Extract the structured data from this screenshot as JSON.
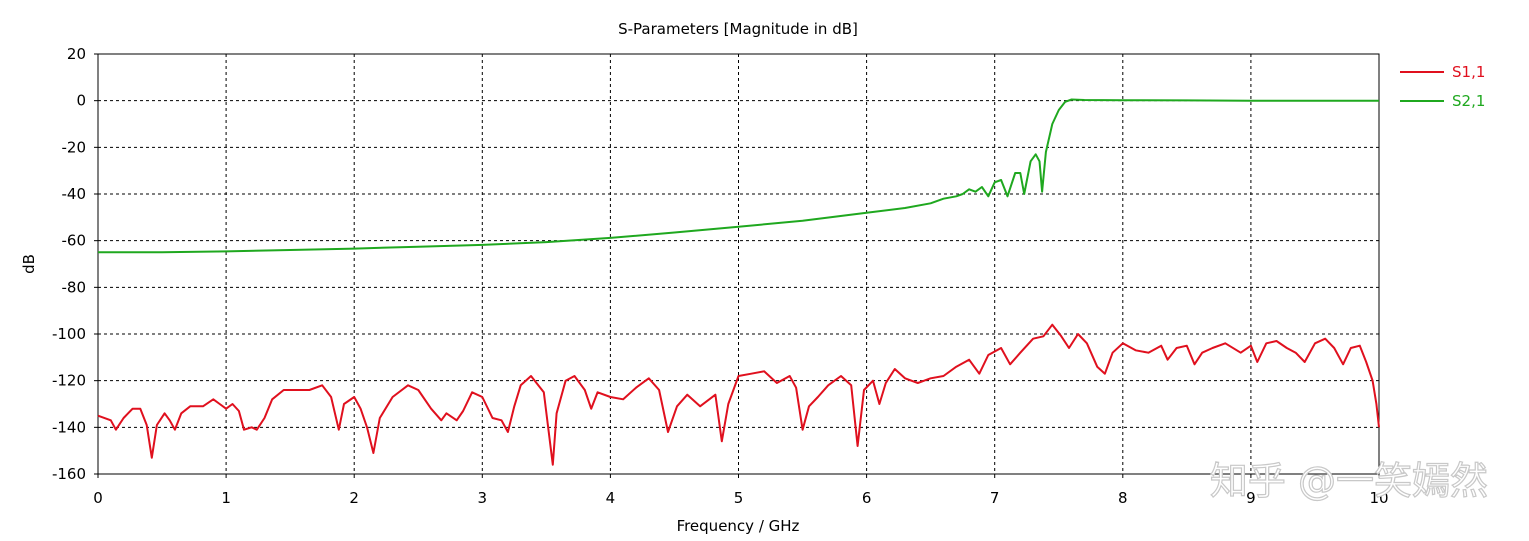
{
  "chart_data": {
    "type": "line",
    "title": "S-Parameters [Magnitude in dB]",
    "xlabel": "Frequency / GHz",
    "ylabel": "dB",
    "xlim": [
      0,
      10
    ],
    "ylim": [
      -160,
      20
    ],
    "xticks": [
      "0",
      "1",
      "2",
      "3",
      "4",
      "5",
      "6",
      "7",
      "8",
      "9",
      "10"
    ],
    "yticks": [
      "20",
      "0",
      "-20",
      "-40",
      "-60",
      "-80",
      "-100",
      "-120",
      "-140",
      "-160"
    ],
    "grid": true,
    "legend_position": "right",
    "series": [
      {
        "name": "S1,1",
        "color": "#e0101e",
        "points": [
          [
            0.0,
            -135
          ],
          [
            0.1,
            -137
          ],
          [
            0.14,
            -141
          ],
          [
            0.2,
            -136
          ],
          [
            0.27,
            -132
          ],
          [
            0.33,
            -132
          ],
          [
            0.38,
            -139
          ],
          [
            0.42,
            -153
          ],
          [
            0.46,
            -139
          ],
          [
            0.52,
            -134
          ],
          [
            0.56,
            -137
          ],
          [
            0.6,
            -141
          ],
          [
            0.65,
            -134
          ],
          [
            0.72,
            -131
          ],
          [
            0.82,
            -131
          ],
          [
            0.9,
            -128
          ],
          [
            0.95,
            -130
          ],
          [
            1.0,
            -132
          ],
          [
            1.05,
            -130
          ],
          [
            1.1,
            -133
          ],
          [
            1.14,
            -141
          ],
          [
            1.2,
            -140
          ],
          [
            1.24,
            -141
          ],
          [
            1.3,
            -136
          ],
          [
            1.36,
            -128
          ],
          [
            1.45,
            -124
          ],
          [
            1.55,
            -124
          ],
          [
            1.65,
            -124
          ],
          [
            1.75,
            -122
          ],
          [
            1.82,
            -127
          ],
          [
            1.88,
            -141
          ],
          [
            1.92,
            -130
          ],
          [
            2.0,
            -127
          ],
          [
            2.05,
            -132
          ],
          [
            2.1,
            -140
          ],
          [
            2.15,
            -151
          ],
          [
            2.2,
            -136
          ],
          [
            2.3,
            -127
          ],
          [
            2.42,
            -122
          ],
          [
            2.5,
            -124
          ],
          [
            2.6,
            -132
          ],
          [
            2.68,
            -137
          ],
          [
            2.72,
            -134
          ],
          [
            2.8,
            -137
          ],
          [
            2.85,
            -133
          ],
          [
            2.92,
            -125
          ],
          [
            3.0,
            -127
          ],
          [
            3.08,
            -136
          ],
          [
            3.15,
            -137
          ],
          [
            3.2,
            -142
          ],
          [
            3.25,
            -131
          ],
          [
            3.3,
            -122
          ],
          [
            3.38,
            -118
          ],
          [
            3.48,
            -125
          ],
          [
            3.55,
            -156
          ],
          [
            3.58,
            -134
          ],
          [
            3.65,
            -120
          ],
          [
            3.72,
            -118
          ],
          [
            3.8,
            -124
          ],
          [
            3.85,
            -132
          ],
          [
            3.9,
            -125
          ],
          [
            4.0,
            -127
          ],
          [
            4.1,
            -128
          ],
          [
            4.2,
            -123
          ],
          [
            4.3,
            -119
          ],
          [
            4.38,
            -124
          ],
          [
            4.45,
            -142
          ],
          [
            4.52,
            -131
          ],
          [
            4.6,
            -126
          ],
          [
            4.7,
            -131
          ],
          [
            4.82,
            -126
          ],
          [
            4.87,
            -146
          ],
          [
            4.92,
            -130
          ],
          [
            5.0,
            -118
          ],
          [
            5.1,
            -117
          ],
          [
            5.2,
            -116
          ],
          [
            5.3,
            -121
          ],
          [
            5.4,
            -118
          ],
          [
            5.45,
            -123
          ],
          [
            5.5,
            -141
          ],
          [
            5.55,
            -131
          ],
          [
            5.62,
            -127
          ],
          [
            5.7,
            -122
          ],
          [
            5.8,
            -118
          ],
          [
            5.88,
            -122
          ],
          [
            5.93,
            -148
          ],
          [
            5.98,
            -124
          ],
          [
            6.05,
            -120
          ],
          [
            6.1,
            -130
          ],
          [
            6.15,
            -121
          ],
          [
            6.22,
            -115
          ],
          [
            6.3,
            -119
          ],
          [
            6.4,
            -121
          ],
          [
            6.5,
            -119
          ],
          [
            6.6,
            -118
          ],
          [
            6.7,
            -114
          ],
          [
            6.8,
            -111
          ],
          [
            6.88,
            -117
          ],
          [
            6.95,
            -109
          ],
          [
            7.05,
            -106
          ],
          [
            7.12,
            -113
          ],
          [
            7.2,
            -108
          ],
          [
            7.3,
            -102
          ],
          [
            7.38,
            -101
          ],
          [
            7.45,
            -96
          ],
          [
            7.52,
            -101
          ],
          [
            7.58,
            -106
          ],
          [
            7.65,
            -100
          ],
          [
            7.72,
            -104
          ],
          [
            7.8,
            -114
          ],
          [
            7.86,
            -117
          ],
          [
            7.92,
            -108
          ],
          [
            8.0,
            -104
          ],
          [
            8.1,
            -107
          ],
          [
            8.2,
            -108
          ],
          [
            8.3,
            -105
          ],
          [
            8.35,
            -111
          ],
          [
            8.42,
            -106
          ],
          [
            8.5,
            -105
          ],
          [
            8.56,
            -113
          ],
          [
            8.62,
            -108
          ],
          [
            8.7,
            -106
          ],
          [
            8.8,
            -104
          ],
          [
            8.92,
            -108
          ],
          [
            9.0,
            -105
          ],
          [
            9.05,
            -112
          ],
          [
            9.12,
            -104
          ],
          [
            9.2,
            -103
          ],
          [
            9.28,
            -106
          ],
          [
            9.35,
            -108
          ],
          [
            9.42,
            -112
          ],
          [
            9.5,
            -104
          ],
          [
            9.58,
            -102
          ],
          [
            9.65,
            -106
          ],
          [
            9.72,
            -113
          ],
          [
            9.78,
            -106
          ],
          [
            9.85,
            -105
          ],
          [
            9.9,
            -112
          ],
          [
            9.95,
            -120
          ],
          [
            9.98,
            -130
          ],
          [
            10.0,
            -140
          ]
        ]
      },
      {
        "name": "S2,1",
        "color": "#1fa81f",
        "points": [
          [
            0.0,
            -65
          ],
          [
            0.5,
            -65
          ],
          [
            1.0,
            -64.6
          ],
          [
            1.5,
            -64
          ],
          [
            2.0,
            -63.4
          ],
          [
            2.5,
            -62.6
          ],
          [
            3.0,
            -61.8
          ],
          [
            3.5,
            -60.6
          ],
          [
            4.0,
            -58.8
          ],
          [
            4.5,
            -56.5
          ],
          [
            5.0,
            -54
          ],
          [
            5.5,
            -51.5
          ],
          [
            6.0,
            -48
          ],
          [
            6.3,
            -46
          ],
          [
            6.5,
            -44
          ],
          [
            6.6,
            -42
          ],
          [
            6.7,
            -41
          ],
          [
            6.75,
            -40
          ],
          [
            6.8,
            -38
          ],
          [
            6.85,
            -39
          ],
          [
            6.9,
            -37
          ],
          [
            6.95,
            -41
          ],
          [
            7.0,
            -35
          ],
          [
            7.05,
            -34
          ],
          [
            7.1,
            -41
          ],
          [
            7.16,
            -31
          ],
          [
            7.2,
            -31
          ],
          [
            7.23,
            -40
          ],
          [
            7.28,
            -26
          ],
          [
            7.32,
            -23
          ],
          [
            7.35,
            -26
          ],
          [
            7.37,
            -39
          ],
          [
            7.4,
            -22
          ],
          [
            7.45,
            -10
          ],
          [
            7.5,
            -4
          ],
          [
            7.55,
            -0.5
          ],
          [
            7.6,
            0.5
          ],
          [
            7.7,
            0.3
          ],
          [
            8.0,
            0.2
          ],
          [
            8.5,
            0.1
          ],
          [
            9.0,
            0
          ],
          [
            9.5,
            0
          ],
          [
            10.0,
            0
          ]
        ]
      }
    ]
  },
  "watermark": "知乎 @一笑嫣然"
}
